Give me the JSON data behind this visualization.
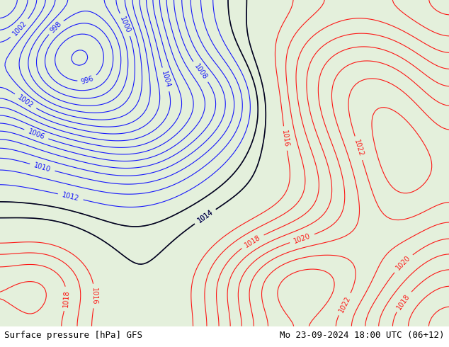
{
  "title_left": "Surface pressure [hPa] GFS",
  "title_right": "Mo 23-09-2024 18:00 UTC (06+12)",
  "bg_color": "#c8e6c9",
  "land_color": "#b8dba0",
  "fig_width": 6.34,
  "fig_height": 4.9,
  "bottom_bar_color": "#ffffff",
  "text_color": "#000000",
  "font_size_label": 9,
  "isobar_blue": "#0000ff",
  "isobar_black": "#000000",
  "isobar_red": "#ff0000"
}
